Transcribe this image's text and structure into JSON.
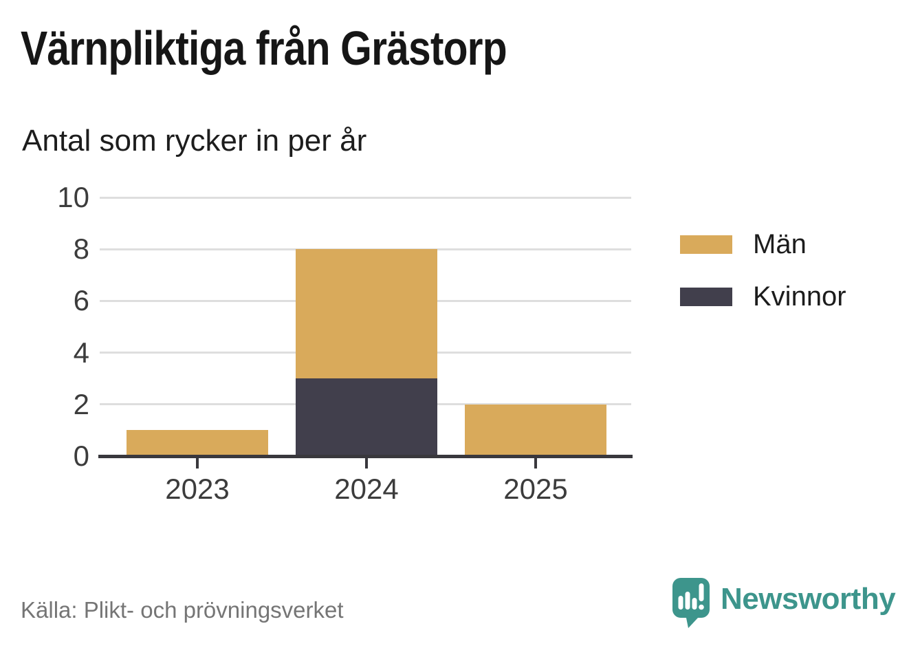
{
  "header": {
    "title": "Värnpliktiga från Grästorp",
    "subtitle": "Antal som rycker in per år"
  },
  "footer": {
    "source": "Källa: Plikt- och prövningsverket",
    "brand_name": "Newsworthy",
    "brand_color": "#3d958c"
  },
  "chart_data": {
    "type": "bar",
    "stacked": true,
    "title": "Värnpliktiga från Grästorp",
    "subtitle": "Antal som rycker in per år",
    "categories": [
      "2023",
      "2024",
      "2025"
    ],
    "series": [
      {
        "name": "Män",
        "color": "#d9aa5b",
        "values": [
          1,
          5,
          2
        ]
      },
      {
        "name": "Kvinnor",
        "color": "#413f4c",
        "values": [
          0,
          3,
          0
        ]
      }
    ],
    "stack_bottom_to_top": [
      "Kvinnor",
      "Män"
    ],
    "totals": [
      1,
      8,
      2
    ],
    "ylim": [
      0,
      10
    ],
    "yticks": [
      0,
      2,
      4,
      6,
      8,
      10
    ],
    "grid": true,
    "grid_color": "#dedede",
    "axis_color": "#39383d",
    "tick_label_color": "#3c3c3c",
    "legend_position": "right-top",
    "source": "Källa: Plikt- och prövningsverket"
  }
}
